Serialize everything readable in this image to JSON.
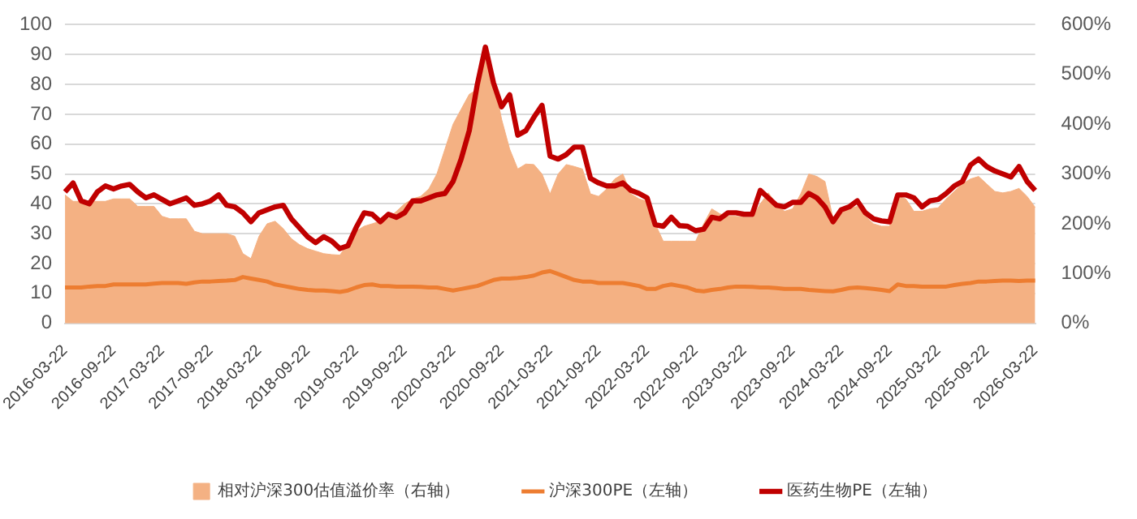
{
  "chart_data": {
    "type": "line",
    "categories": [
      "2016-03-22",
      null,
      null,
      null,
      null,
      null,
      "2016-09-22",
      null,
      null,
      null,
      null,
      null,
      "2017-03-22",
      null,
      null,
      null,
      null,
      null,
      "2017-09-22",
      null,
      null,
      null,
      null,
      null,
      "2018-03-22",
      null,
      null,
      null,
      null,
      null,
      "2018-09-22",
      null,
      null,
      null,
      null,
      null,
      "2019-03-22",
      null,
      null,
      null,
      null,
      null,
      "2019-09-22",
      null,
      null,
      null,
      null,
      null,
      "2020-03-22",
      null,
      null,
      null,
      null,
      null,
      "2020-09-22",
      null,
      null,
      null,
      null,
      null,
      "2021-03-22",
      null,
      null,
      null,
      null,
      null,
      "2021-09-22",
      null,
      null,
      null,
      null,
      null,
      "2022-03-22",
      null,
      null,
      null,
      null,
      null,
      "2022-09-22",
      null,
      null,
      null,
      null,
      null,
      "2023-03-22",
      null,
      null,
      null,
      null,
      null,
      "2023-09-22",
      null,
      null,
      null,
      null,
      null,
      "2024-03-22",
      null,
      null,
      null,
      null,
      null,
      "2024-09-22",
      null,
      null,
      null,
      null,
      null,
      "2025-03-22",
      null,
      null,
      null,
      null,
      null,
      "2025-09-22",
      null,
      null,
      null,
      null,
      null,
      "2026-03-22"
    ],
    "series": [
      {
        "name": "相对沪深300估值溢价率（右轴）",
        "type": "area",
        "axis": "y2",
        "color": "#f4b183",
        "values": [
          258,
          245,
          245,
          245,
          245,
          245,
          250,
          250,
          250,
          235,
          235,
          235,
          215,
          210,
          210,
          210,
          185,
          180,
          180,
          180,
          180,
          175,
          140,
          130,
          175,
          200,
          205,
          190,
          170,
          158,
          150,
          145,
          140,
          138,
          137,
          160,
          185,
          195,
          200,
          205,
          210,
          225,
          240,
          250,
          255,
          270,
          300,
          350,
          400,
          430,
          460,
          470,
          540,
          490,
          410,
          350,
          310,
          320,
          319,
          300,
          260,
          300,
          319,
          315,
          310,
          260,
          255,
          270,
          290,
          300,
          260,
          250,
          245,
          200,
          165,
          165,
          165,
          165,
          165,
          200,
          230,
          220,
          215,
          215,
          213,
          213,
          240,
          262,
          240,
          225,
          230,
          260,
          300,
          295,
          285,
          210,
          225,
          230,
          235,
          215,
          200,
          195,
          195,
          255,
          250,
          225,
          225,
          230,
          232,
          250,
          265,
          280,
          290,
          295,
          280,
          265,
          262,
          265,
          271,
          255,
          233
        ]
      },
      {
        "name": "沪深300PE（左轴）",
        "type": "line",
        "color": "#ed7d31",
        "values": [
          12,
          12,
          12,
          12.3,
          12.5,
          12.5,
          13,
          13,
          13,
          13,
          13,
          13.3,
          13.5,
          13.5,
          13.5,
          13.2,
          13.7,
          14,
          14,
          14.2,
          14.3,
          14.5,
          15.5,
          15,
          14.5,
          14,
          13,
          12.5,
          12,
          11.5,
          11.2,
          11,
          11,
          10.8,
          10.5,
          11,
          12,
          12.8,
          13,
          12.5,
          12.5,
          12.3,
          12.3,
          12.3,
          12.2,
          12,
          12,
          11.5,
          11,
          11.5,
          12,
          12.5,
          13.5,
          14.5,
          15,
          15,
          15.2,
          15.5,
          16,
          17,
          17.5,
          16.5,
          15.5,
          14.5,
          14,
          14,
          13.5,
          13.5,
          13.5,
          13.5,
          13,
          12.5,
          11.5,
          11.5,
          12.5,
          13,
          12.5,
          12,
          11,
          10.7,
          11.2,
          11.5,
          12,
          12.3,
          12.3,
          12.2,
          12,
          12,
          11.8,
          11.5,
          11.5,
          11.5,
          11.2,
          11,
          10.8,
          10.7,
          11.2,
          11.8,
          12,
          11.8,
          11.5,
          11.2,
          10.8,
          13,
          12.5,
          12.5,
          12.3,
          12.3,
          12.3,
          12.3,
          12.8,
          13.2,
          13.5,
          14,
          14,
          14.2,
          14.3,
          14.3,
          14.2,
          14.3,
          14.3
        ]
      },
      {
        "name": "医药生物PE（左轴）",
        "type": "line",
        "color": "#c00000",
        "values": [
          44,
          47,
          41,
          40,
          44,
          46,
          45,
          46,
          46.5,
          44,
          42,
          43,
          41.5,
          40,
          41,
          42,
          39.5,
          40,
          41,
          43,
          39.5,
          39,
          37,
          34,
          37,
          38,
          39,
          39.5,
          35,
          32,
          29,
          27,
          29,
          27.5,
          25,
          26,
          32,
          37,
          36.5,
          34,
          36.5,
          35.5,
          37,
          41,
          41,
          42,
          43,
          43.5,
          47.5,
          55,
          64.5,
          80,
          92.5,
          80.5,
          72.5,
          76.5,
          63,
          64.5,
          69,
          73,
          56,
          55,
          56.5,
          59,
          59,
          48.5,
          47,
          46,
          46,
          47,
          44.5,
          43.5,
          42,
          33,
          32.5,
          35.5,
          32.7,
          32.5,
          31,
          31.5,
          35.5,
          35,
          37,
          37,
          36.5,
          36.5,
          44.5,
          42,
          39.5,
          39,
          40.5,
          40.5,
          43.5,
          42,
          39,
          34,
          38,
          39,
          41,
          37,
          35,
          34.3,
          34,
          43,
          43,
          42,
          39,
          41,
          41.5,
          43.5,
          46,
          47.5,
          53,
          55,
          52.5,
          51,
          50,
          49,
          52.5,
          47.5,
          44.5
        ]
      }
    ],
    "ylim": [
      0,
      100
    ],
    "yticks": [
      0,
      10,
      20,
      30,
      40,
      50,
      60,
      70,
      80,
      90,
      100
    ],
    "y2lim": [
      0,
      600
    ],
    "y2ticks": [
      {
        "value": 0,
        "label": "0%"
      },
      {
        "value": 100,
        "label": "100%"
      },
      {
        "value": 200,
        "label": "200%"
      },
      {
        "value": 300,
        "label": "300%"
      },
      {
        "value": 400,
        "label": "400%"
      },
      {
        "value": 500,
        "label": "500%"
      },
      {
        "value": 600,
        "label": "600%"
      }
    ],
    "grid": "y",
    "legend": "bottom"
  }
}
